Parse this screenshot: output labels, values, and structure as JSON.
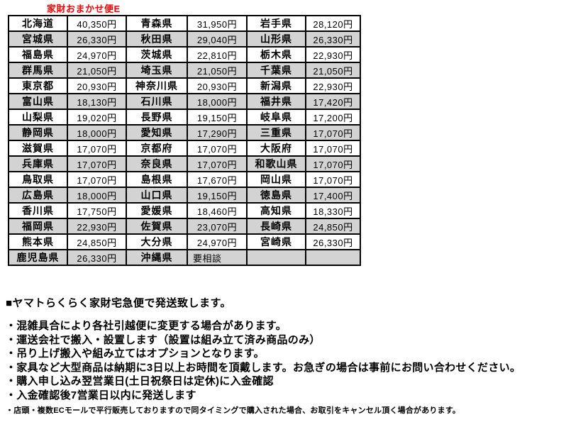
{
  "title": "家財おまかせ便E",
  "title_color": "#ff0000",
  "table": {
    "row_alt_color": "#d3d3d3",
    "border_color": "#000000",
    "currency_suffix": "円",
    "rows": [
      [
        {
          "pref": "北海道",
          "price": "40,350円"
        },
        {
          "pref": "青森県",
          "price": "31,950円"
        },
        {
          "pref": "岩手県",
          "price": "28,120円"
        }
      ],
      [
        {
          "pref": "宮城県",
          "price": "26,330円"
        },
        {
          "pref": "秋田県",
          "price": "29,040円"
        },
        {
          "pref": "山形県",
          "price": "26,330円"
        }
      ],
      [
        {
          "pref": "福島県",
          "price": "24,970円"
        },
        {
          "pref": "茨城県",
          "price": "22,810円"
        },
        {
          "pref": "栃木県",
          "price": "22,930円"
        }
      ],
      [
        {
          "pref": "群馬県",
          "price": "21,050円"
        },
        {
          "pref": "埼玉県",
          "price": "21,050円"
        },
        {
          "pref": "千葉県",
          "price": "21,050円"
        }
      ],
      [
        {
          "pref": "東京都",
          "price": "20,930円"
        },
        {
          "pref": "神奈川県",
          "price": "20,930円"
        },
        {
          "pref": "新潟県",
          "price": "22,930円"
        }
      ],
      [
        {
          "pref": "富山県",
          "price": "18,130円"
        },
        {
          "pref": "石川県",
          "price": "18,000円"
        },
        {
          "pref": "福井県",
          "price": "17,420円"
        }
      ],
      [
        {
          "pref": "山梨県",
          "price": "19,020円"
        },
        {
          "pref": "長野県",
          "price": "19,150円"
        },
        {
          "pref": "岐阜県",
          "price": "17,200円"
        }
      ],
      [
        {
          "pref": "静岡県",
          "price": "18,000円"
        },
        {
          "pref": "愛知県",
          "price": "17,290円"
        },
        {
          "pref": "三重県",
          "price": "17,070円"
        }
      ],
      [
        {
          "pref": "滋賀県",
          "price": "17,070円"
        },
        {
          "pref": "京都府",
          "price": "17,070円"
        },
        {
          "pref": "大阪府",
          "price": "17,070円"
        }
      ],
      [
        {
          "pref": "兵庫県",
          "price": "17,070円"
        },
        {
          "pref": "奈良県",
          "price": "17,070円"
        },
        {
          "pref": "和歌山県",
          "price": "17,070円"
        }
      ],
      [
        {
          "pref": "鳥取県",
          "price": "17,070円"
        },
        {
          "pref": "島根県",
          "price": "17,670円"
        },
        {
          "pref": "岡山県",
          "price": "17,070円"
        }
      ],
      [
        {
          "pref": "広島県",
          "price": "18,000円"
        },
        {
          "pref": "山口県",
          "price": "19,150円"
        },
        {
          "pref": "徳島県",
          "price": "17,400円"
        }
      ],
      [
        {
          "pref": "香川県",
          "price": "17,750円"
        },
        {
          "pref": "愛媛県",
          "price": "18,460円"
        },
        {
          "pref": "高知県",
          "price": "18,330円"
        }
      ],
      [
        {
          "pref": "福岡県",
          "price": "22,930円"
        },
        {
          "pref": "佐賀県",
          "price": "23,070円"
        },
        {
          "pref": "長崎県",
          "price": "24,850円"
        }
      ],
      [
        {
          "pref": "熊本県",
          "price": "24,850円"
        },
        {
          "pref": "大分県",
          "price": "24,970円"
        },
        {
          "pref": "宮崎県",
          "price": "26,330円"
        }
      ],
      [
        {
          "pref": "鹿児島県",
          "price": "26,330円"
        },
        {
          "pref": "沖縄県",
          "price": "要相談"
        },
        {
          "pref": "",
          "price": ""
        }
      ]
    ]
  },
  "notes": {
    "heading": "■ヤマトらくらく家財宅急便で発送致します。",
    "bullets": [
      "・混雑具合により各社引越便に変更する場合があります。",
      "・運送会社で搬入・設置します（設置は組み立て済み商品のみ）",
      "・吊り上げ搬入や組み立てはオプションとなります。",
      "・家具など大型商品は納期に3日以上お時間を頂戴します。お急ぎの場合は事前にお問い合わせください。",
      "・購入申し込み翌営業日(土日祝祭日は定休)に入金確認",
      "・入金確認後7営業日以内に発送します"
    ],
    "footnote": "・店頭・複数ECモールで平行販売しておりますので同タイミングで購入された場合、お取引をキャンセル頂く場合があります。"
  }
}
